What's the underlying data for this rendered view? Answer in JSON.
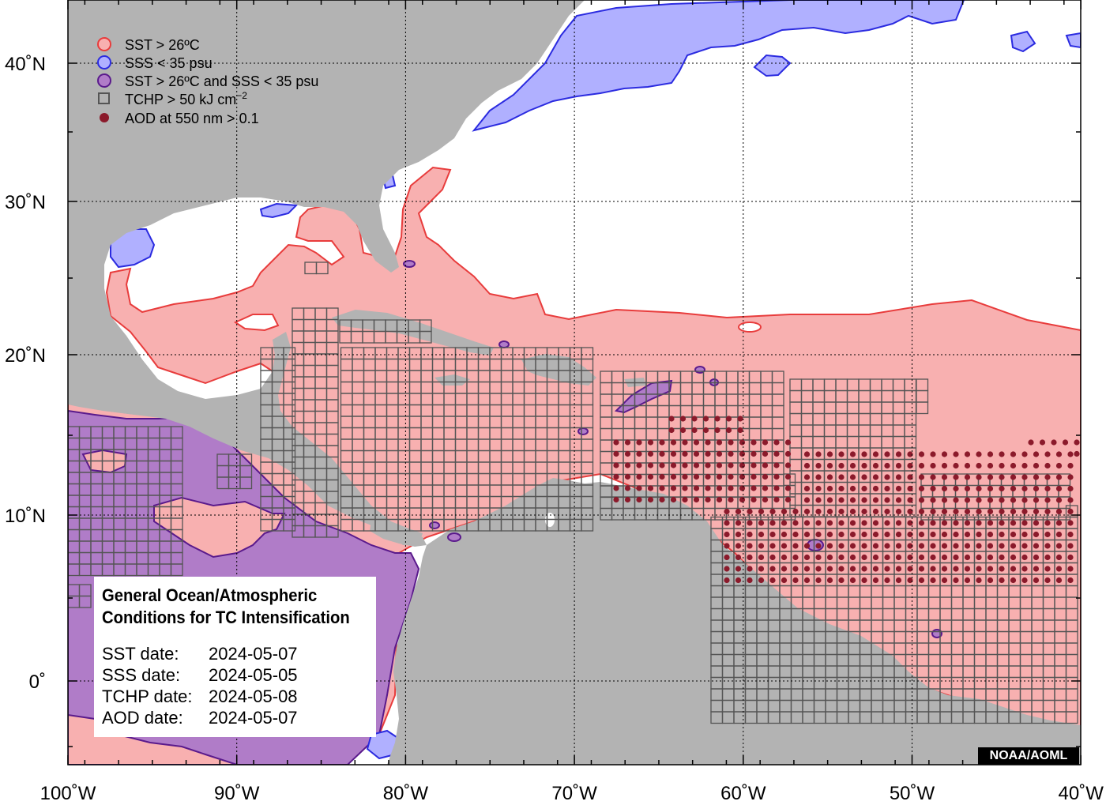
{
  "map": {
    "x_ticks": [
      "100˚W",
      "90˚W",
      "80˚W",
      "70˚W",
      "60˚W",
      "50˚W",
      "40˚W"
    ],
    "y_ticks": [
      "40˚N",
      "30˚N",
      "20˚N",
      "10˚N",
      "0˚"
    ],
    "colors": {
      "land": "#b3b3b3",
      "ocean": "#ffffff",
      "sst": "#f8b0b0",
      "sst_line": "#e83c3c",
      "sss": "#b0b0ff",
      "sss_line": "#2b2be0",
      "both": "#b07cc8",
      "both_line": "#5a1a8c",
      "tchp_line": "#555555",
      "aod": "#8b1a2b"
    }
  },
  "legend": {
    "items": [
      {
        "label": "SST > 26ºC",
        "symbol": "circle-red"
      },
      {
        "label": "SSS < 35 psu",
        "symbol": "circle-blue"
      },
      {
        "label": "SST > 26ºC and SSS < 35 psu",
        "symbol": "circle-purple"
      },
      {
        "label": "TCHP > 50 kJ cm",
        "sup": "−2",
        "symbol": "square-outline"
      },
      {
        "label": "AOD at 550 nm > 0.1",
        "symbol": "dot-darkred"
      }
    ]
  },
  "info": {
    "title_line1": "General Ocean/Atmospheric",
    "title_line2": "Conditions for TC Intensification",
    "rows": [
      {
        "label": "SST date:",
        "value": "2024-05-07"
      },
      {
        "label": "SSS date:",
        "value": "2024-05-05"
      },
      {
        "label": "TCHP date:",
        "value": "2024-05-08"
      },
      {
        "label": "AOD date:",
        "value": "2024-05-07"
      }
    ]
  },
  "credit": "NOAA/AOML"
}
